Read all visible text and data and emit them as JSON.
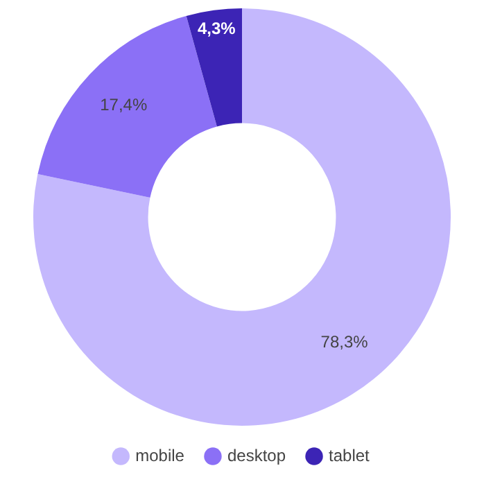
{
  "chart_data": {
    "type": "donut",
    "categories": [
      "mobile",
      "desktop",
      "tablet"
    ],
    "values": [
      78.3,
      17.4,
      4.3
    ],
    "colors": [
      "#c4b8fd",
      "#8b70f6",
      "#3c24b5"
    ],
    "value_labels": [
      "78,3%",
      "17,4%",
      "4,3%"
    ],
    "legend": "bottom"
  }
}
